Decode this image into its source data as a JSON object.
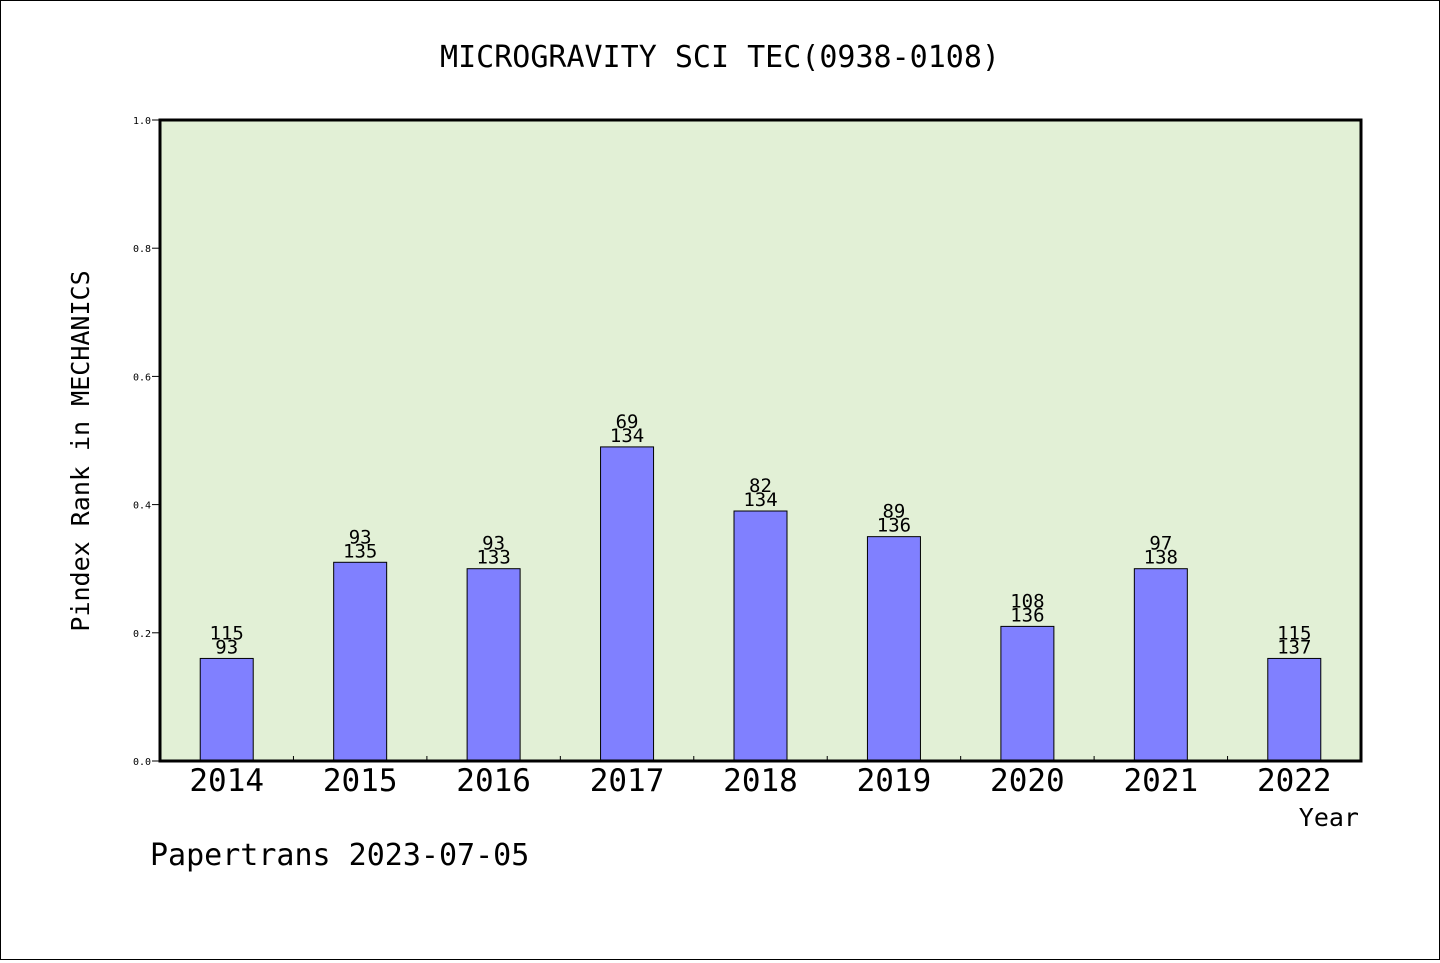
{
  "chart_data": {
    "type": "bar",
    "title": "MICROGRAVITY SCI TEC(0938-0108)",
    "xlabel": "Year",
    "ylabel": "Pindex Rank in MECHANICS",
    "ylim": [
      0,
      1.0
    ],
    "yticks": [
      "0.0",
      "0.2",
      "0.4",
      "0.6",
      "0.8",
      "1.0"
    ],
    "ytick_values": [
      0,
      0.2,
      0.4,
      0.6,
      0.8,
      1.0
    ],
    "categories": [
      "2014",
      "2015",
      "2016",
      "2017",
      "2018",
      "2019",
      "2020",
      "2021",
      "2022"
    ],
    "values": [
      0.16,
      0.31,
      0.3,
      0.49,
      0.39,
      0.35,
      0.21,
      0.3,
      0.16
    ],
    "label_top": [
      "115",
      "93",
      "93",
      "69",
      "82",
      "89",
      "108",
      "97",
      "115"
    ],
    "label_bottom": [
      "93",
      "135",
      "133",
      "134",
      "134",
      "136",
      "136",
      "138",
      "137"
    ],
    "grid": false,
    "legend": "none",
    "colors": {
      "plot_background": "#e2f0d6",
      "bar_fill": "#8080ff",
      "bar_stroke": "#000000"
    }
  },
  "footer": {
    "credit": "Papertrans 2023-07-05"
  }
}
